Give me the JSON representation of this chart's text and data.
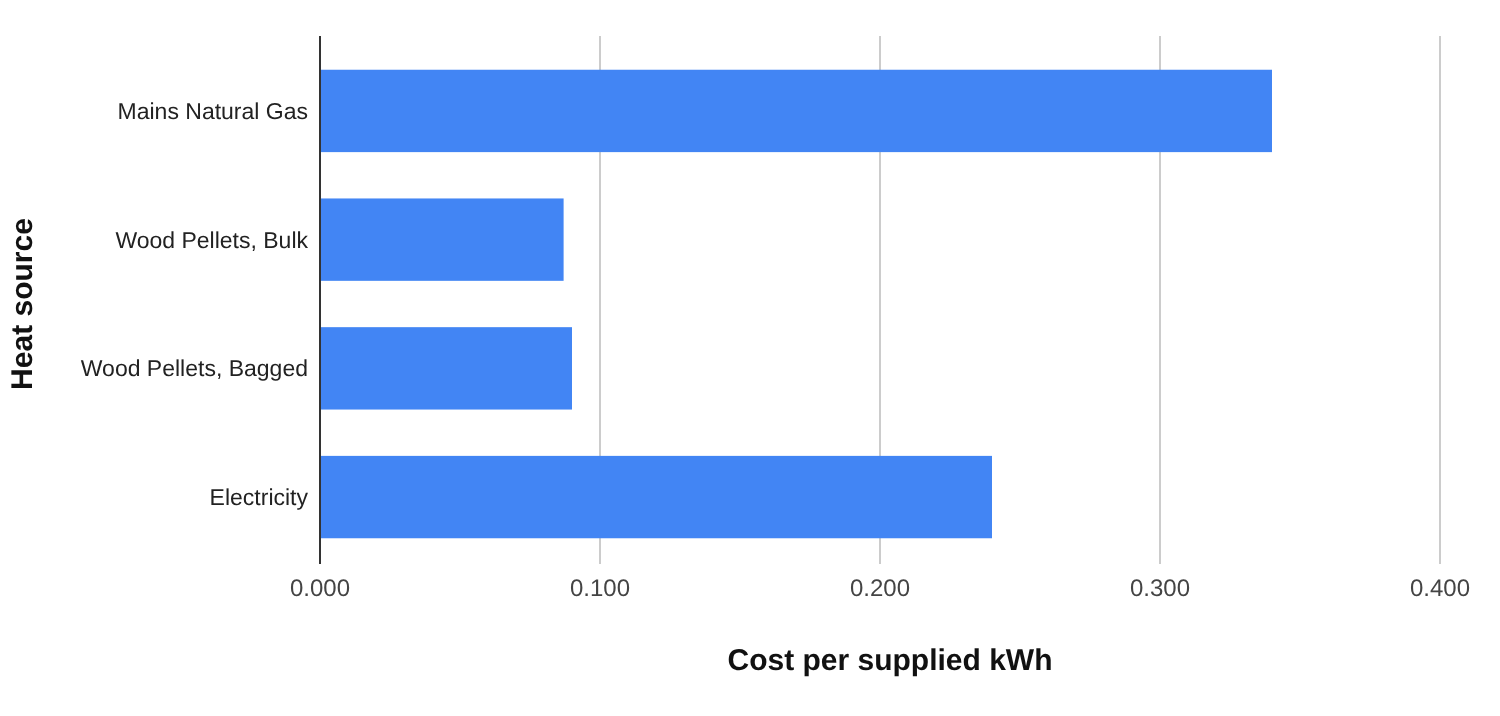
{
  "chart_data": {
    "type": "bar",
    "orientation": "horizontal",
    "xlabel": "Cost per supplied kWh",
    "ylabel": "Heat source",
    "categories": [
      "Mains Natural Gas",
      "Wood Pellets, Bulk",
      "Wood Pellets, Bagged",
      "Electricity"
    ],
    "values": [
      0.34,
      0.087,
      0.09,
      0.24
    ],
    "color": "#4285f4",
    "xlim": [
      0,
      0.4
    ],
    "xticks": [
      {
        "value": 0,
        "label": "0.000"
      },
      {
        "value": 0.1,
        "label": "0.100"
      },
      {
        "value": 0.2,
        "label": "0.200"
      },
      {
        "value": 0.3,
        "label": "0.300"
      },
      {
        "value": 0.4,
        "label": "0.400"
      }
    ],
    "grid": "x"
  }
}
